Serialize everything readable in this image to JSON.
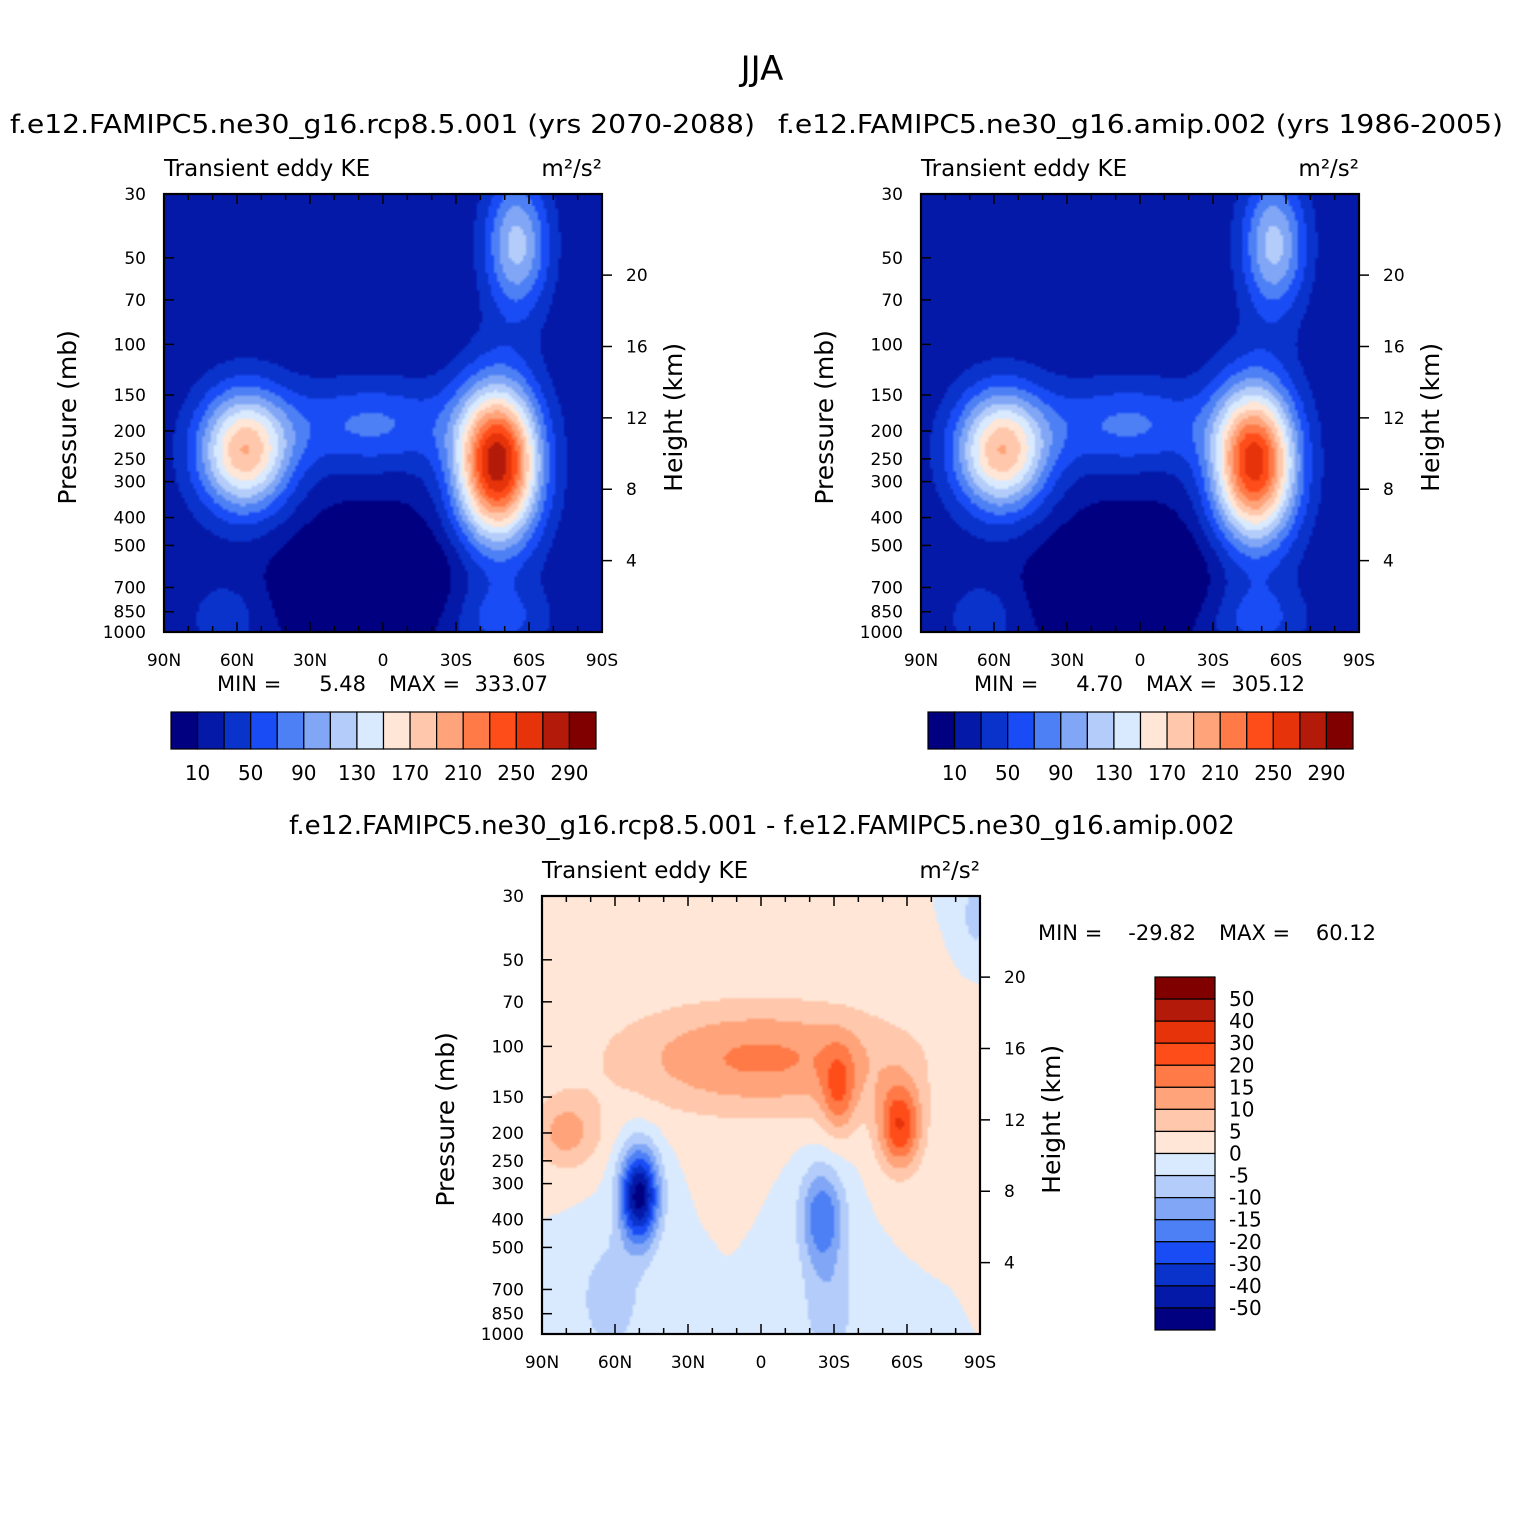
{
  "page_title": "JJA",
  "plot_subtitle": "Transient eddy KE",
  "units": "m²/s²",
  "x_ticks": [
    "90N",
    "60N",
    "30N",
    "0",
    "30S",
    "60S",
    "90S"
  ],
  "y_label": "Pressure (mb)",
  "y2_label": "Height (km)",
  "y_ticks": [
    "30",
    "50",
    "70",
    "100",
    "150",
    "200",
    "250",
    "300",
    "400",
    "500",
    "700",
    "850",
    "1000"
  ],
  "y2_ticks": [
    "20",
    "16",
    "12",
    "8",
    "4"
  ],
  "panels": [
    {
      "id": "rcp85",
      "title": "f.e12.FAMIPC5.ne30_g16.rcp8.5.001 (yrs 2070-2088)",
      "stats_min_label": "MIN =",
      "stats_min": "5.48",
      "stats_max_label": "MAX =",
      "stats_max": "333.07"
    },
    {
      "id": "amip",
      "title": "f.e12.FAMIPC5.ne30_g16.amip.002 (yrs 1986-2005)",
      "stats_min_label": "MIN =",
      "stats_min": "4.70",
      "stats_max_label": "MAX =",
      "stats_max": "305.12"
    },
    {
      "id": "diff",
      "title": "f.e12.FAMIPC5.ne30_g16.rcp8.5.001 - f.e12.FAMIPC5.ne30_g16.amip.002",
      "stats_min_label": "MIN =",
      "stats_min": "-29.82",
      "stats_max_label": "MAX =",
      "stats_max": "60.12"
    }
  ],
  "colorbar_main": {
    "colors": [
      "#000080",
      "#0519a8",
      "#0a33cc",
      "#1a4cf5",
      "#4d7ff5",
      "#80a6f5",
      "#b3ccfa",
      "#d9eaff",
      "#ffe6d6",
      "#ffc7ab",
      "#ffa37a",
      "#ff7a47",
      "#ff4d1a",
      "#e6330a",
      "#b31a0a",
      "#800000"
    ],
    "labels": [
      "10",
      "50",
      "90",
      "130",
      "170",
      "210",
      "250",
      "290"
    ]
  },
  "colorbar_diff": {
    "colors": [
      "#000080",
      "#0519a8",
      "#0a33cc",
      "#1a4cf5",
      "#4d7ff5",
      "#80a6f5",
      "#b3ccfa",
      "#d9eaff",
      "#ffe6d6",
      "#ffc7ab",
      "#ffa37a",
      "#ff7a47",
      "#ff4d1a",
      "#e6330a",
      "#b31a0a",
      "#800000"
    ],
    "labels": [
      "50",
      "40",
      "30",
      "20",
      "15",
      "10",
      "5",
      "0",
      "-5",
      "-10",
      "-15",
      "-20",
      "-30",
      "-40",
      "-50"
    ]
  },
  "chart_data": [
    {
      "type": "heatmap",
      "title": "f.e12.FAMIPC5.ne30_g16.rcp8.5.001 (yrs 2070-2088)",
      "subtitle": "Transient eddy KE",
      "units": "m²/s²",
      "xlabel": "",
      "ylabel": "Pressure (mb)",
      "y2label": "Height (km)",
      "x_range": [
        90,
        -90
      ],
      "y_range_mb": [
        1000,
        30
      ],
      "levels": [
        10,
        30,
        50,
        70,
        90,
        110,
        130,
        150,
        170,
        190,
        210,
        230,
        250,
        270,
        290
      ],
      "min": 5.48,
      "max": 333.07,
      "features": [
        {
          "name": "SH subtropical jet",
          "lat": -47,
          "p_mb": 270,
          "value": 320
        },
        {
          "name": "NH jet",
          "lat": 57,
          "p_mb": 230,
          "value": 205
        },
        {
          "name": "SH stratospheric column",
          "lat": -50,
          "p_mb": 50,
          "value": 150
        },
        {
          "name": "tropical minimum",
          "lat": 5,
          "p_mb": 600,
          "value": 15
        }
      ]
    },
    {
      "type": "heatmap",
      "title": "f.e12.FAMIPC5.ne30_g16.amip.002 (yrs 1986-2005)",
      "subtitle": "Transient eddy KE",
      "units": "m²/s²",
      "xlabel": "",
      "ylabel": "Pressure (mb)",
      "y2label": "Height (km)",
      "x_range": [
        90,
        -90
      ],
      "y_range_mb": [
        1000,
        30
      ],
      "levels": [
        10,
        30,
        50,
        70,
        90,
        110,
        130,
        150,
        170,
        190,
        210,
        230,
        250,
        270,
        290
      ],
      "min": 4.7,
      "max": 305.12,
      "features": [
        {
          "name": "SH subtropical jet",
          "lat": -47,
          "p_mb": 260,
          "value": 295
        },
        {
          "name": "NH jet",
          "lat": 57,
          "p_mb": 240,
          "value": 190
        },
        {
          "name": "SH stratospheric column",
          "lat": -50,
          "p_mb": 50,
          "value": 140
        },
        {
          "name": "tropical minimum",
          "lat": 5,
          "p_mb": 600,
          "value": 12
        }
      ]
    },
    {
      "type": "heatmap",
      "title": "f.e12.FAMIPC5.ne30_g16.rcp8.5.001 - f.e12.FAMIPC5.ne30_g16.amip.002",
      "subtitle": "Transient eddy KE",
      "units": "m²/s²",
      "xlabel": "",
      "ylabel": "Pressure (mb)",
      "y2label": "Height (km)",
      "x_range": [
        90,
        -90
      ],
      "y_range_mb": [
        1000,
        30
      ],
      "levels": [
        -50,
        -40,
        -30,
        -20,
        -15,
        -10,
        -5,
        0,
        5,
        10,
        15,
        20,
        30,
        40,
        50
      ],
      "min": -29.82,
      "max": 60.12,
      "features": [
        {
          "name": "upper tropospheric increase band",
          "lat": 0,
          "p_mb": 110,
          "value": 35
        },
        {
          "name": "SH jet increase",
          "lat": -57,
          "p_mb": 190,
          "value": 55
        },
        {
          "name": "NH decrease",
          "lat": 50,
          "p_mb": 330,
          "value": -28
        },
        {
          "name": "SH decrease",
          "lat": -25,
          "p_mb": 380,
          "value": -15
        }
      ]
    }
  ]
}
